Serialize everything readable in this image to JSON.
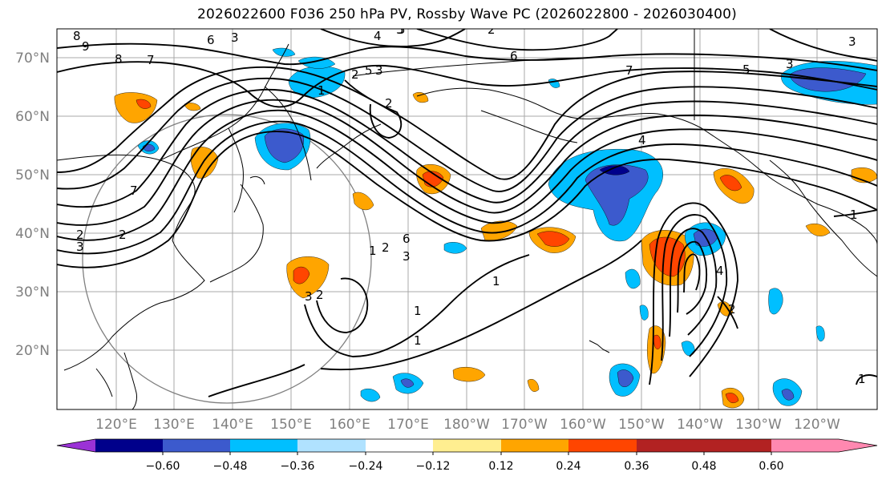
{
  "title": "2026022600 F036 250 hPa PV, Rossby Wave PC (2026022800 - 2026030400)",
  "lat_labels": [
    "70°N",
    "60°N",
    "50°N",
    "40°N",
    "30°N",
    "20°N"
  ],
  "lon_labels": [
    "120°E",
    "130°E",
    "140°E",
    "150°E",
    "160°E",
    "170°E",
    "180°W",
    "170°W",
    "160°W",
    "150°W",
    "140°W",
    "130°W",
    "120°W"
  ],
  "colorbar": {
    "colors": [
      "#9b32d6",
      "#00008b",
      "#3c5acd",
      "#00bfff",
      "#b0e2ff",
      "#ffffff",
      "#ffee90",
      "#ffa500",
      "#ff4500",
      "#b22222",
      "#ff88b0"
    ],
    "tick_labels": [
      "−0.60",
      "−0.48",
      "−0.36",
      "−0.24",
      "−0.12",
      "0.12",
      "0.24",
      "0.36",
      "0.48",
      "0.60"
    ]
  },
  "contour_labels": [
    "8",
    "8",
    "9",
    "7",
    "6",
    "3",
    "4",
    "5",
    "2",
    "6",
    "7",
    "3",
    "5",
    "3",
    "2",
    "3",
    "2",
    "1",
    "7",
    "2",
    "2",
    "2",
    "3",
    "6",
    "5",
    "3",
    "4",
    "1",
    "1",
    "1",
    "1",
    "1",
    "3",
    "2",
    "4",
    "2",
    "5",
    "1"
  ]
}
